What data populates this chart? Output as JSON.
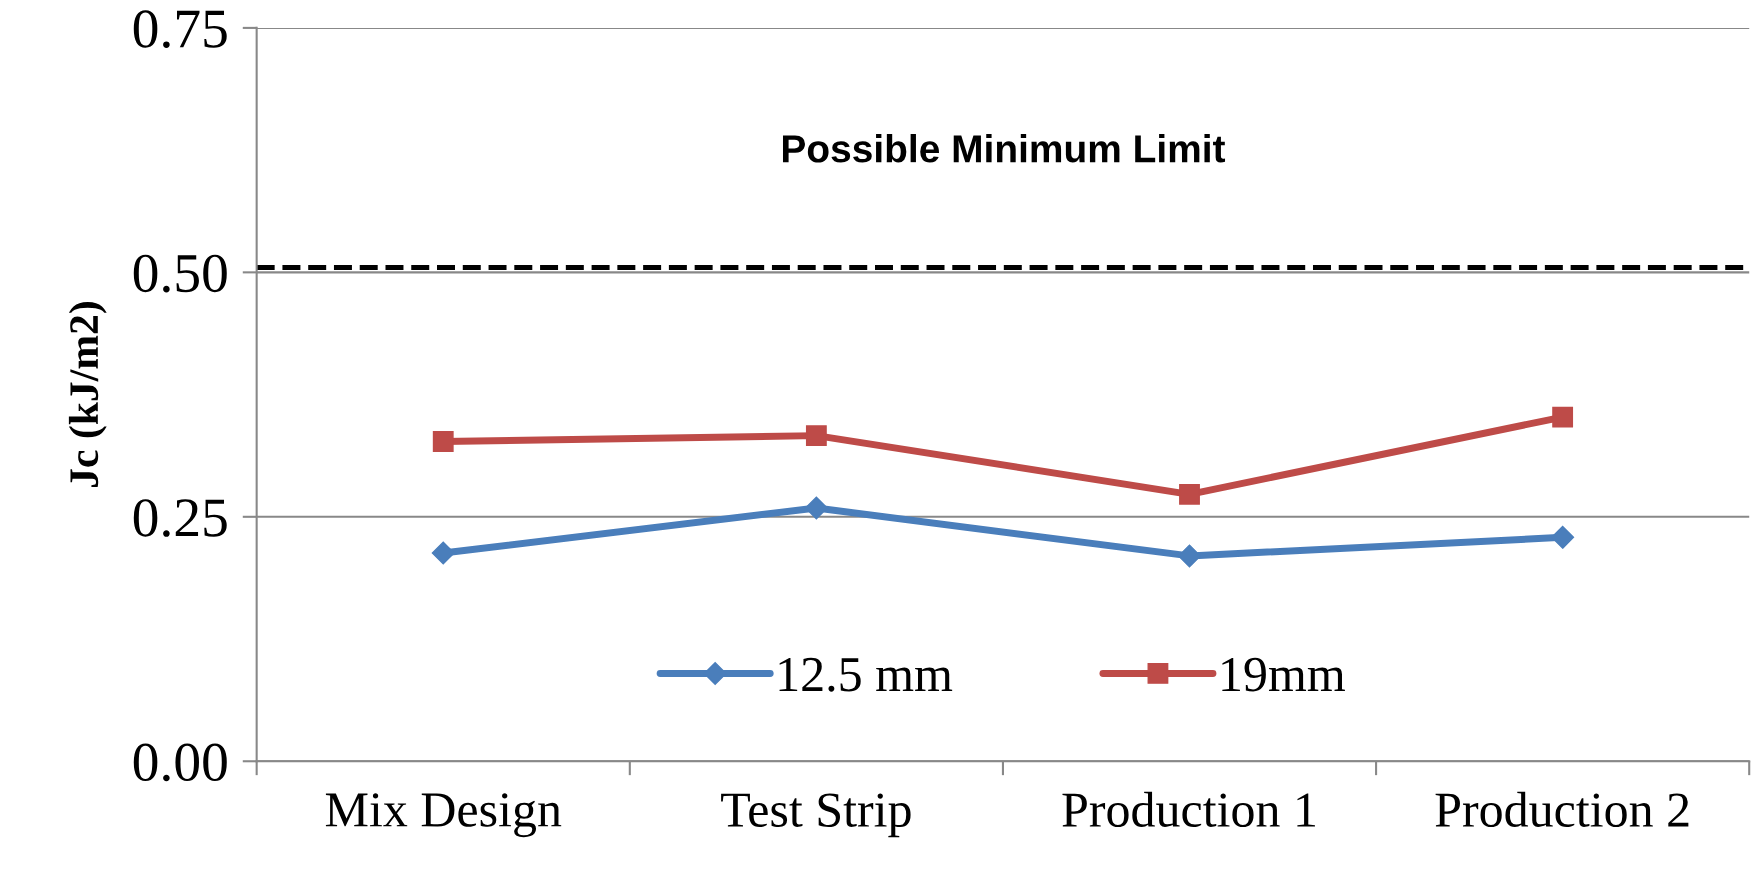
{
  "chart_data": {
    "type": "line",
    "ylabel": "Jc (kJ/m2)",
    "categories": [
      "Mix Design",
      "Test Strip",
      "Production 1",
      "Production 2"
    ],
    "series": [
      {
        "name": "12.5 mm",
        "color": "#4a7ebb",
        "marker": "diamond",
        "values": [
          0.213,
          0.259,
          0.21,
          0.229
        ]
      },
      {
        "name": "19mm",
        "color": "#be4b48",
        "marker": "square",
        "values": [
          0.327,
          0.333,
          0.273,
          0.352
        ]
      }
    ],
    "ylim": [
      0,
      0.75
    ],
    "yticks": [
      {
        "value": 0,
        "label": "0.00"
      },
      {
        "value": 0.25,
        "label": "0.25"
      },
      {
        "value": 0.5,
        "label": "0.50"
      },
      {
        "value": 0.75,
        "label": "0.75"
      }
    ],
    "grid": "y",
    "legend": "bottom",
    "line_style": "solid",
    "ref_lines": [
      {
        "axis": "y",
        "value": 0.505,
        "label": "Possible Minimum Limit",
        "color": "#000000",
        "line_style": "dashed"
      }
    ]
  }
}
